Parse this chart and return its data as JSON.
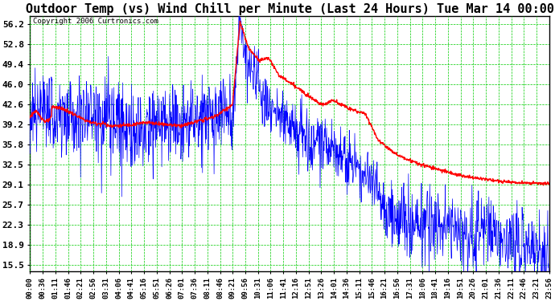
{
  "title": "Outdoor Temp (vs) Wind Chill per Minute (Last 24 Hours) Tue Mar 14 00:00",
  "copyright": "Copyright 2006 Curtronics.com",
  "yticks": [
    15.5,
    18.9,
    22.3,
    25.7,
    29.1,
    32.5,
    35.8,
    39.2,
    42.6,
    46.0,
    49.4,
    52.8,
    56.2
  ],
  "ylim": [
    14.5,
    57.5
  ],
  "xtick_labels": [
    "00:00",
    "00:36",
    "01:11",
    "01:46",
    "02:21",
    "02:56",
    "03:31",
    "04:06",
    "04:41",
    "05:16",
    "05:51",
    "06:26",
    "07:01",
    "07:36",
    "08:11",
    "08:46",
    "09:21",
    "09:56",
    "10:31",
    "11:06",
    "11:41",
    "12:16",
    "12:51",
    "13:26",
    "14:01",
    "14:36",
    "15:11",
    "15:46",
    "16:21",
    "16:56",
    "17:31",
    "18:06",
    "18:41",
    "19:16",
    "19:51",
    "20:26",
    "21:01",
    "21:36",
    "22:11",
    "22:46",
    "23:21",
    "23:56"
  ],
  "background_color": "#ffffff",
  "grid_color": "#00cc00",
  "blue_color": "#0000ff",
  "red_color": "#ff0000",
  "title_fontsize": 11,
  "copyright_fontsize": 6.5,
  "tick_fontsize": 6.5,
  "ytick_fontsize": 8
}
